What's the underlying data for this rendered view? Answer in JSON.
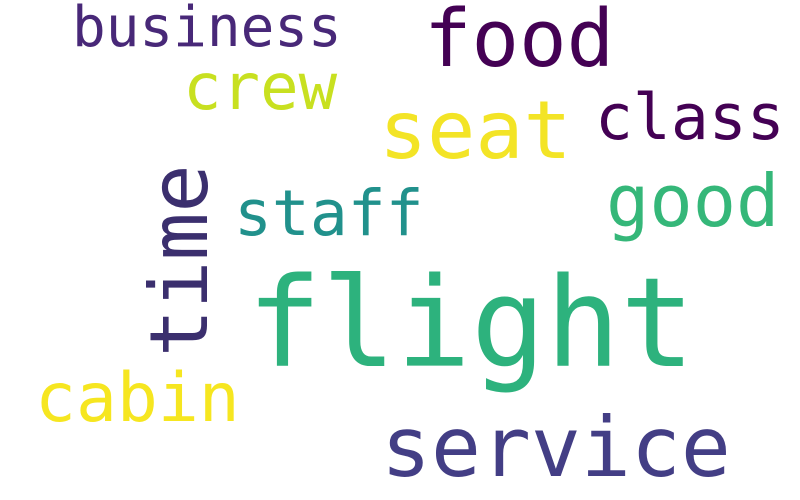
{
  "words": [
    {
      "key": "flight",
      "text": "flight",
      "color": "#2db27d"
    },
    {
      "key": "service",
      "text": "service",
      "color": "#433e85"
    },
    {
      "key": "seat",
      "text": "seat",
      "color": "#f3e426"
    },
    {
      "key": "food",
      "text": "food",
      "color": "#440154"
    },
    {
      "key": "time",
      "text": "time",
      "color": "#3b2f6e"
    },
    {
      "key": "cabin",
      "text": "cabin",
      "color": "#f6e620"
    },
    {
      "key": "crew",
      "text": "crew",
      "color": "#c8e020"
    },
    {
      "key": "class",
      "text": "class",
      "color": "#440154"
    },
    {
      "key": "good",
      "text": "good",
      "color": "#35b779"
    },
    {
      "key": "business",
      "text": "business",
      "color": "#482878"
    },
    {
      "key": "staff",
      "text": "staff",
      "color": "#21918c"
    }
  ]
}
